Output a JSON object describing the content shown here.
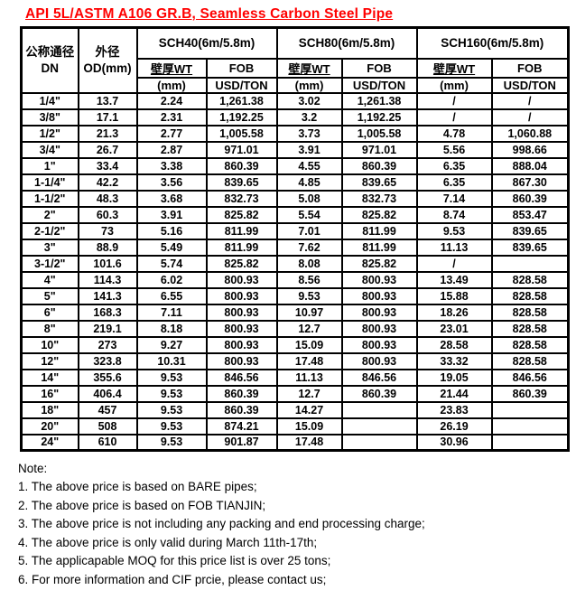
{
  "title": "API 5L/ASTM A106 GR.B, Seamless Carbon Steel Pipe",
  "colors": {
    "title_text": "#ff0000",
    "table_border": "#000000",
    "body_text": "#000000",
    "background": "#ffffff"
  },
  "table": {
    "header": {
      "dn_cn": "公称通径",
      "dn_en": "DN",
      "od_cn": "外径",
      "od_en": "OD(mm)",
      "groups": [
        {
          "label": "SCH40(6m/5.8m)",
          "wt_label": "壁厚WT",
          "wt_unit": "(mm)",
          "fob_label": "FOB",
          "fob_unit": "USD/TON"
        },
        {
          "label": "SCH80(6m/5.8m)",
          "wt_label": "壁厚WT",
          "wt_unit": "(mm)",
          "fob_label": "FOB",
          "fob_unit": "USD/TON"
        },
        {
          "label": "SCH160(6m/5.8m)",
          "wt_label": "壁厚WT",
          "wt_unit": "(mm)",
          "fob_label": "FOB",
          "fob_unit": "USD/TON"
        }
      ]
    },
    "rows": [
      [
        "1/4\"",
        "13.7",
        "2.24",
        "1,261.38",
        "3.02",
        "1,261.38",
        "/",
        "/"
      ],
      [
        "3/8\"",
        "17.1",
        "2.31",
        "1,192.25",
        "3.2",
        "1,192.25",
        "/",
        "/"
      ],
      [
        "1/2\"",
        "21.3",
        "2.77",
        "1,005.58",
        "3.73",
        "1,005.58",
        "4.78",
        "1,060.88"
      ],
      [
        "3/4\"",
        "26.7",
        "2.87",
        "971.01",
        "3.91",
        "971.01",
        "5.56",
        "998.66"
      ],
      [
        "1\"",
        "33.4",
        "3.38",
        "860.39",
        "4.55",
        "860.39",
        "6.35",
        "888.04"
      ],
      [
        "1-1/4\"",
        "42.2",
        "3.56",
        "839.65",
        "4.85",
        "839.65",
        "6.35",
        "867.30"
      ],
      [
        "1-1/2\"",
        "48.3",
        "3.68",
        "832.73",
        "5.08",
        "832.73",
        "7.14",
        "860.39"
      ],
      [
        "2\"",
        "60.3",
        "3.91",
        "825.82",
        "5.54",
        "825.82",
        "8.74",
        "853.47"
      ],
      [
        "2-1/2\"",
        "73",
        "5.16",
        "811.99",
        "7.01",
        "811.99",
        "9.53",
        "839.65"
      ],
      [
        "3\"",
        "88.9",
        "5.49",
        "811.99",
        "7.62",
        "811.99",
        "11.13",
        "839.65"
      ],
      [
        "3-1/2\"",
        "101.6",
        "5.74",
        "825.82",
        "8.08",
        "825.82",
        "/",
        ""
      ],
      [
        "4\"",
        "114.3",
        "6.02",
        "800.93",
        "8.56",
        "800.93",
        "13.49",
        "828.58"
      ],
      [
        "5\"",
        "141.3",
        "6.55",
        "800.93",
        "9.53",
        "800.93",
        "15.88",
        "828.58"
      ],
      [
        "6\"",
        "168.3",
        "7.11",
        "800.93",
        "10.97",
        "800.93",
        "18.26",
        "828.58"
      ],
      [
        "8\"",
        "219.1",
        "8.18",
        "800.93",
        "12.7",
        "800.93",
        "23.01",
        "828.58"
      ],
      [
        "10\"",
        "273",
        "9.27",
        "800.93",
        "15.09",
        "800.93",
        "28.58",
        "828.58"
      ],
      [
        "12\"",
        "323.8",
        "10.31",
        "800.93",
        "17.48",
        "800.93",
        "33.32",
        "828.58"
      ],
      [
        "14\"",
        "355.6",
        "9.53",
        "846.56",
        "11.13",
        "846.56",
        "19.05",
        "846.56"
      ],
      [
        "16\"",
        "406.4",
        "9.53",
        "860.39",
        "12.7",
        "860.39",
        "21.44",
        "860.39"
      ],
      [
        "18\"",
        "457",
        "9.53",
        "860.39",
        "14.27",
        "",
        "23.83",
        ""
      ],
      [
        "20\"",
        "508",
        "9.53",
        "874.21",
        "15.09",
        "",
        "26.19",
        ""
      ],
      [
        "24\"",
        "610",
        "9.53",
        "901.87",
        "17.48",
        "",
        "30.96",
        ""
      ]
    ]
  },
  "notes": {
    "heading": "Note:",
    "items": [
      "1. The above price is based on BARE pipes;",
      "2. The above price is based on FOB TIANJIN;",
      "3. The above price is not including any packing and end processing charge;",
      "4. The above price is only valid during March 11th-17th;",
      "5. The applicapable MOQ for this price list is over 25 tons;",
      "6. For more information and CIF prcie, please contact us;"
    ]
  }
}
